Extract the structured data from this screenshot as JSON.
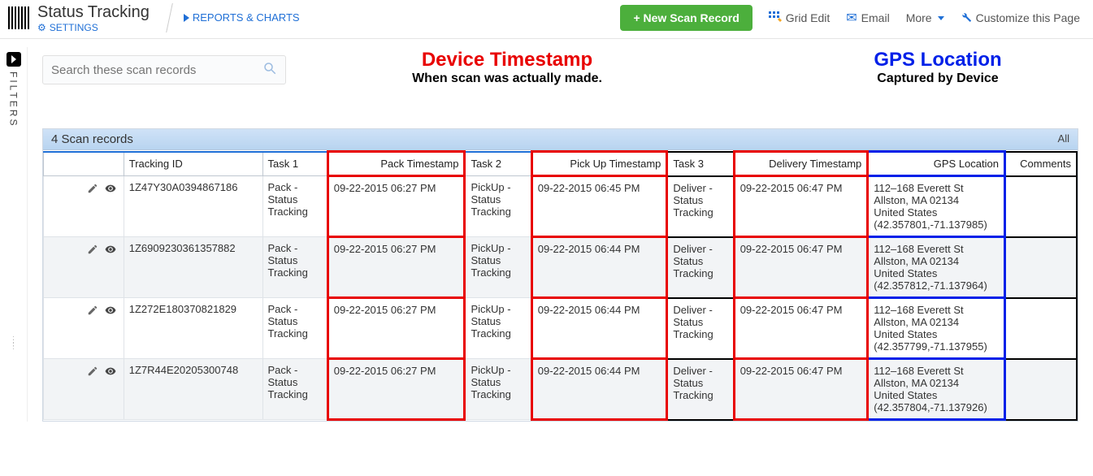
{
  "header": {
    "title": "Status Tracking",
    "settings_label": "SETTINGS",
    "reports_label": "REPORTS & CHARTS"
  },
  "toolbar": {
    "new_button": "+ New Scan Record",
    "grid_edit": "Grid Edit",
    "email": "Email",
    "more": "More",
    "customize": "Customize this Page"
  },
  "filters_label": "FILTERS",
  "search_placeholder": "Search these scan records",
  "annotations": {
    "timestamp_title": "Device Timestamp",
    "timestamp_sub": "When scan was actually made.",
    "gps_title": "GPS Location",
    "gps_sub": "Captured by Device",
    "red_color": "#e80000",
    "blue_color": "#0020e8"
  },
  "table": {
    "summary": "4 Scan records",
    "all_label": "All",
    "columns": [
      "",
      "Tracking ID",
      "Task 1",
      "Pack Timestamp",
      "Task 2",
      "Pick Up Timestamp",
      "Task 3",
      "Delivery Timestamp",
      "GPS Location",
      "Comments"
    ],
    "highlight": {
      "red_cols": [
        3,
        5,
        7
      ],
      "blue_cols": [
        8
      ],
      "black_cols": [
        6,
        9
      ]
    },
    "rows": [
      {
        "tracking": "1Z47Y30A0394867186",
        "task1": "Pack - Status Tracking",
        "packts": "09-22-2015 06:27 PM",
        "task2": "PickUp - Status Tracking",
        "pickts": "09-22-2015 06:45 PM",
        "task3": "Deliver - Status Tracking",
        "delts": "09-22-2015 06:47 PM",
        "gps": "112–168 Everett St\nAllston, MA  02134\nUnited States\n(42.357801,-71.137985)",
        "comments": ""
      },
      {
        "tracking": "1Z6909230361357882",
        "task1": "Pack - Status Tracking",
        "packts": "09-22-2015 06:27 PM",
        "task2": "PickUp - Status Tracking",
        "pickts": "09-22-2015 06:44 PM",
        "task3": "Deliver - Status Tracking",
        "delts": "09-22-2015 06:47 PM",
        "gps": "112–168 Everett St\nAllston, MA  02134\nUnited States\n(42.357812,-71.137964)",
        "comments": ""
      },
      {
        "tracking": "1Z272E180370821829",
        "task1": "Pack - Status Tracking",
        "packts": "09-22-2015 06:27 PM",
        "task2": "PickUp - Status Tracking",
        "pickts": "09-22-2015 06:44 PM",
        "task3": "Deliver - Status Tracking",
        "delts": "09-22-2015 06:47 PM",
        "gps": "112–168 Everett St\nAllston, MA  02134\nUnited States\n(42.357799,-71.137955)",
        "comments": ""
      },
      {
        "tracking": "1Z7R44E20205300748",
        "task1": "Pack - Status Tracking",
        "packts": "09-22-2015 06:27 PM",
        "task2": "PickUp - Status Tracking",
        "pickts": "09-22-2015 06:44 PM",
        "task3": "Deliver - Status Tracking",
        "delts": "09-22-2015 06:47 PM",
        "gps": "112–168 Everett St\nAllston, MA  02134\nUnited States\n(42.357804,-71.137926)",
        "comments": ""
      }
    ]
  }
}
